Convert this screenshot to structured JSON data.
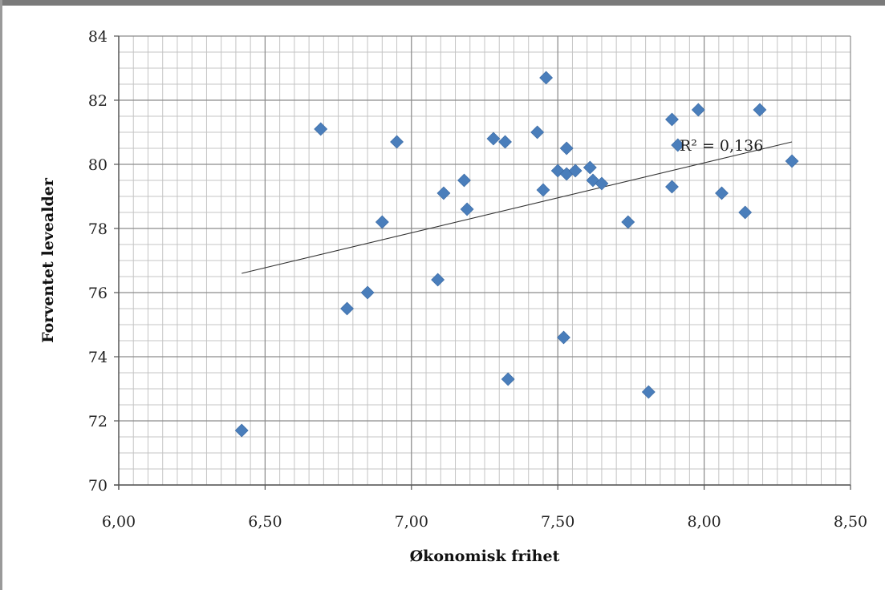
{
  "chart_data": {
    "type": "scatter",
    "title": "",
    "xlabel": "Økonomisk frihet",
    "ylabel": "Forventet levealder",
    "xlim": [
      6.0,
      8.5
    ],
    "ylim": [
      70,
      84
    ],
    "x_ticks": [
      6.0,
      6.5,
      7.0,
      7.5,
      8.0,
      8.5
    ],
    "x_tick_labels": [
      "6,00",
      "6,50",
      "7,00",
      "7,50",
      "8,00",
      "8,50"
    ],
    "y_ticks": [
      70,
      72,
      74,
      76,
      78,
      80,
      82,
      84
    ],
    "y_tick_labels": [
      "70",
      "72",
      "74",
      "76",
      "78",
      "80",
      "82",
      "84"
    ],
    "grid": true,
    "legend": "none",
    "marker_color": "#4a7ebb",
    "series": [
      {
        "x": [
          6.42,
          6.69,
          6.78,
          6.85,
          6.9,
          6.95,
          7.09,
          7.11,
          7.18,
          7.19,
          7.28,
          7.32,
          7.33,
          7.43,
          7.45,
          7.46,
          7.5,
          7.52,
          7.53,
          7.53,
          7.56,
          7.61,
          7.62,
          7.65,
          7.74,
          7.81,
          7.89,
          7.89,
          7.91,
          7.98,
          8.06,
          8.14,
          8.19,
          8.3
        ],
        "y": [
          71.7,
          81.1,
          75.5,
          76.0,
          78.2,
          80.7,
          76.4,
          79.1,
          79.5,
          78.6,
          80.8,
          80.7,
          73.3,
          81.0,
          79.2,
          82.7,
          79.8,
          74.6,
          80.5,
          79.7,
          79.8,
          79.9,
          79.5,
          79.4,
          78.2,
          72.9,
          81.4,
          79.3,
          80.6,
          81.7,
          79.1,
          78.5,
          81.7,
          80.1
        ]
      }
    ],
    "trendline": {
      "type": "linear",
      "x_start": 6.42,
      "x_end": 8.3,
      "y_start": 76.6,
      "y_end": 80.7,
      "r2_label": "R² = 0,136"
    }
  }
}
